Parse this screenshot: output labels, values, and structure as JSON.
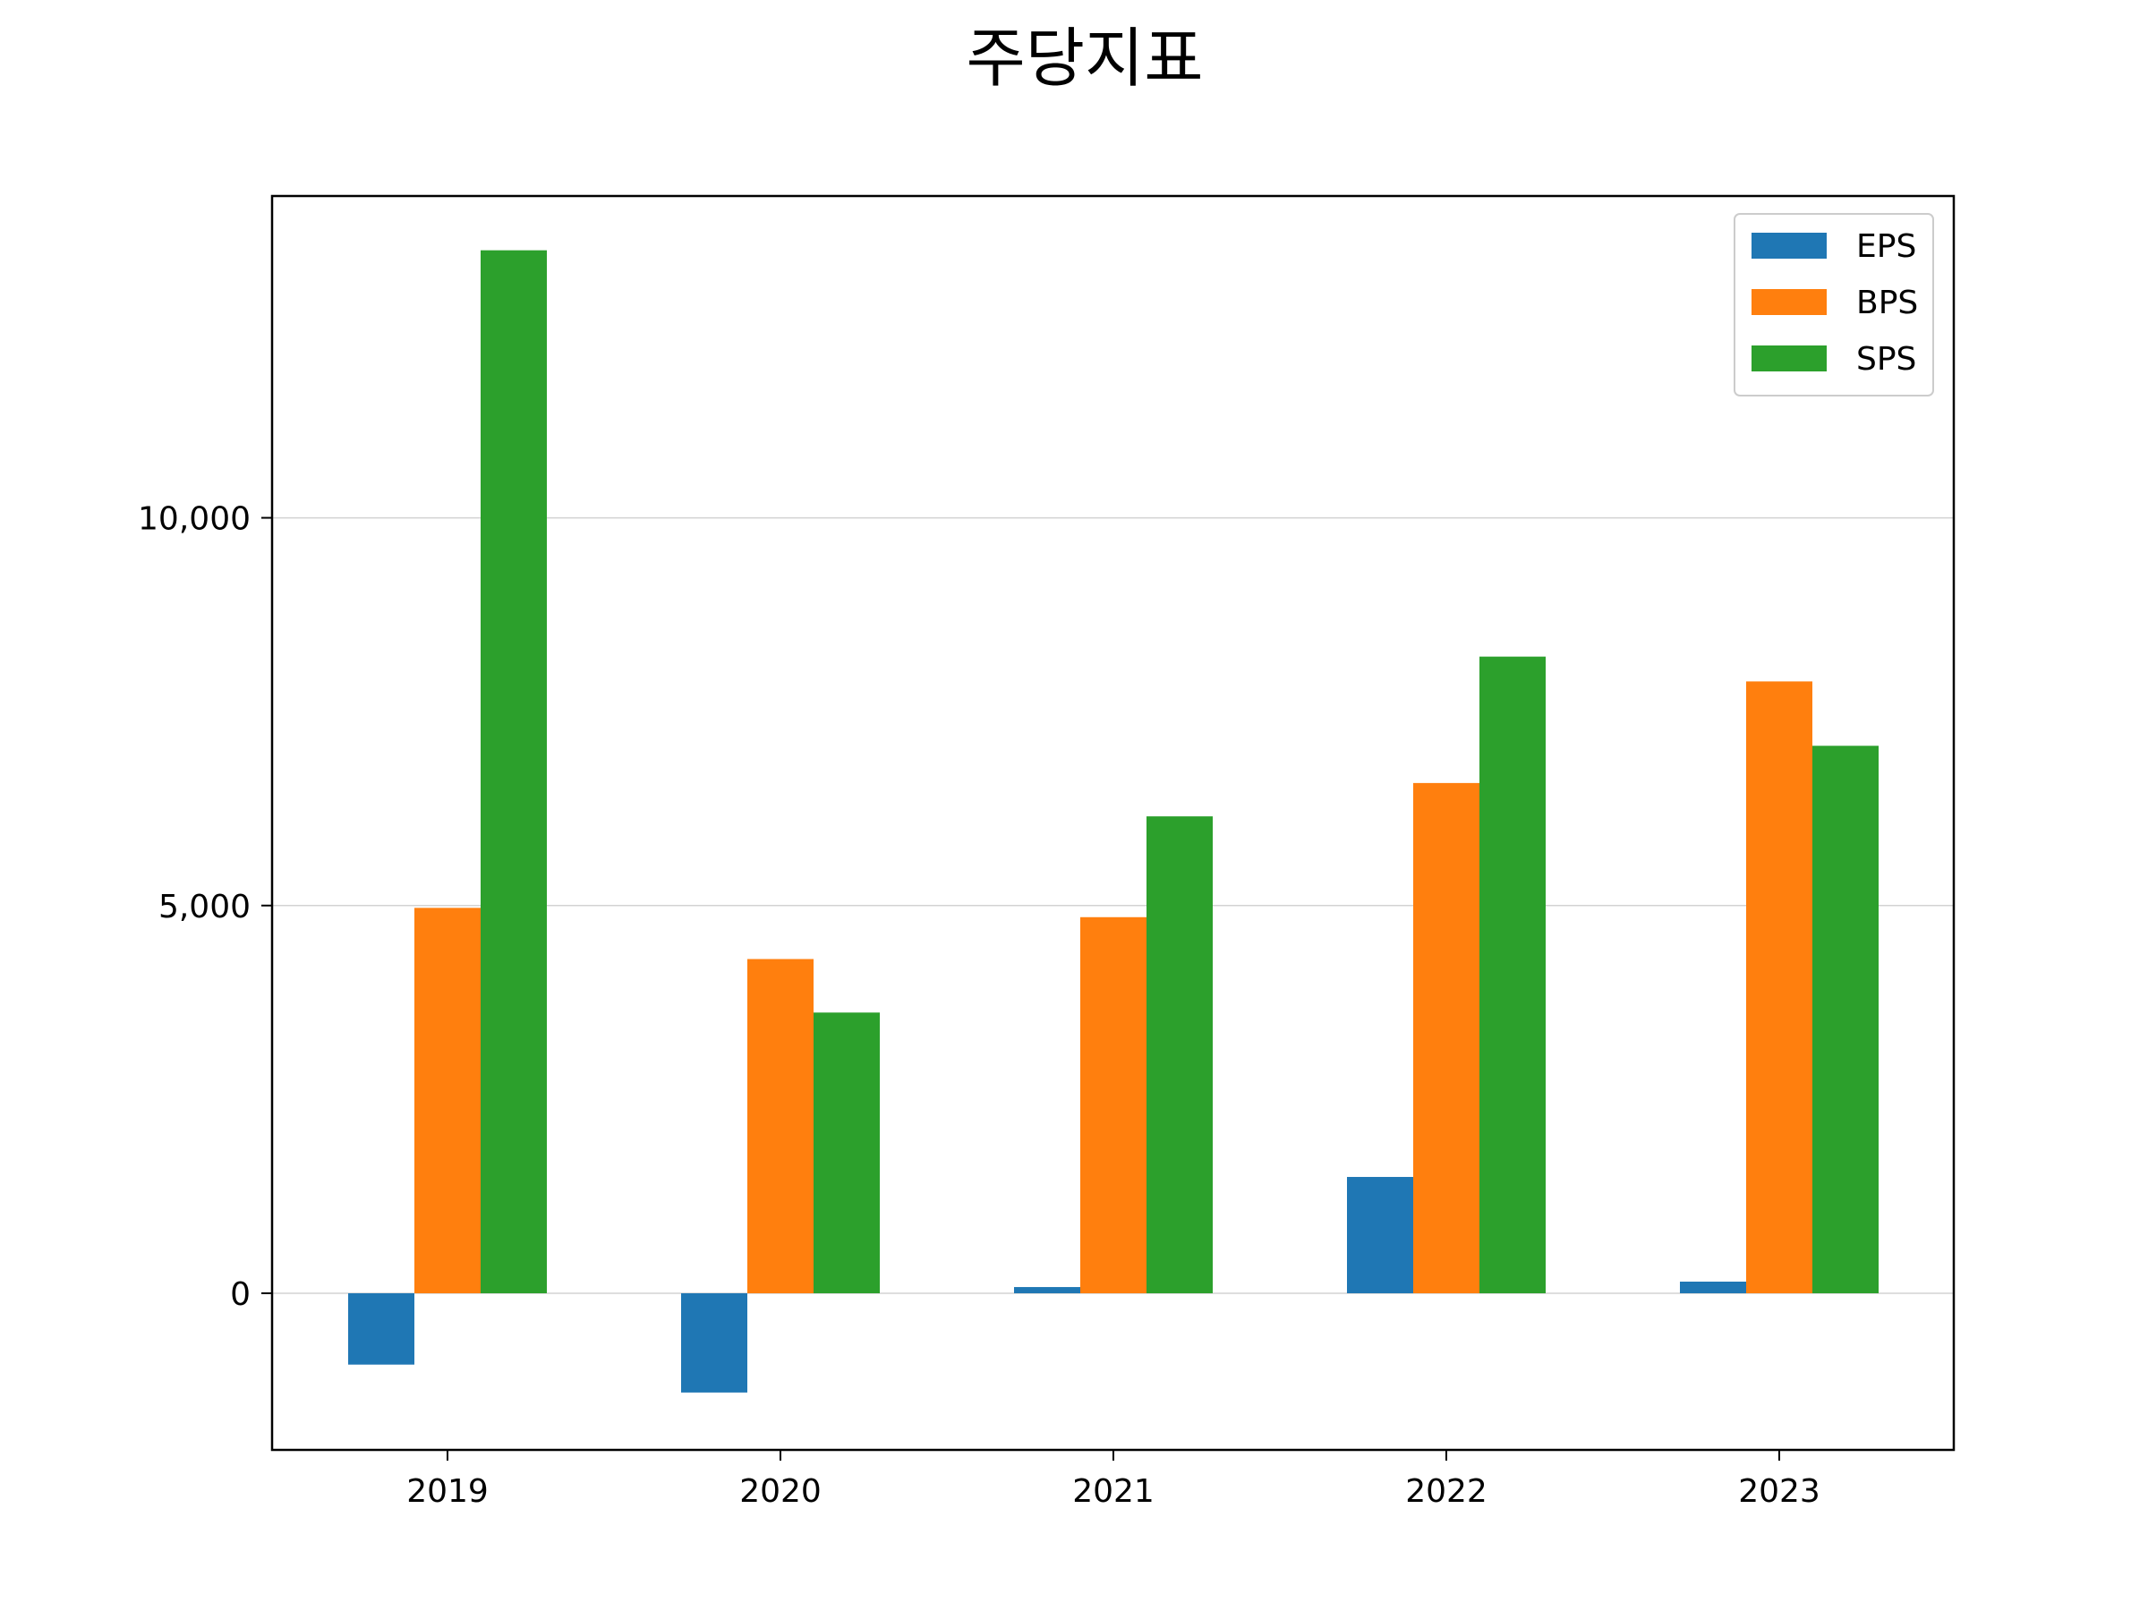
{
  "chart_data": {
    "type": "bar",
    "title": "주당지표",
    "xlabel": "",
    "ylabel": "",
    "categories": [
      "2019",
      "2020",
      "2021",
      "2022",
      "2023"
    ],
    "series": [
      {
        "name": "EPS",
        "color": "#1f77b4",
        "values": [
          -920,
          -1280,
          80,
          1500,
          150
        ]
      },
      {
        "name": "BPS",
        "color": "#ff7f0e",
        "values": [
          4970,
          4310,
          4850,
          6580,
          7890
        ]
      },
      {
        "name": "SPS",
        "color": "#2ca02c",
        "values": [
          13450,
          3620,
          6150,
          8210,
          7060
        ]
      }
    ],
    "ylim": [
      -2020,
      14150
    ],
    "yticks": [
      0,
      5000,
      10000
    ],
    "ytick_labels": [
      "0",
      "5,000",
      "10,000"
    ],
    "grid": "horizontal",
    "legend_position": "top-right"
  }
}
